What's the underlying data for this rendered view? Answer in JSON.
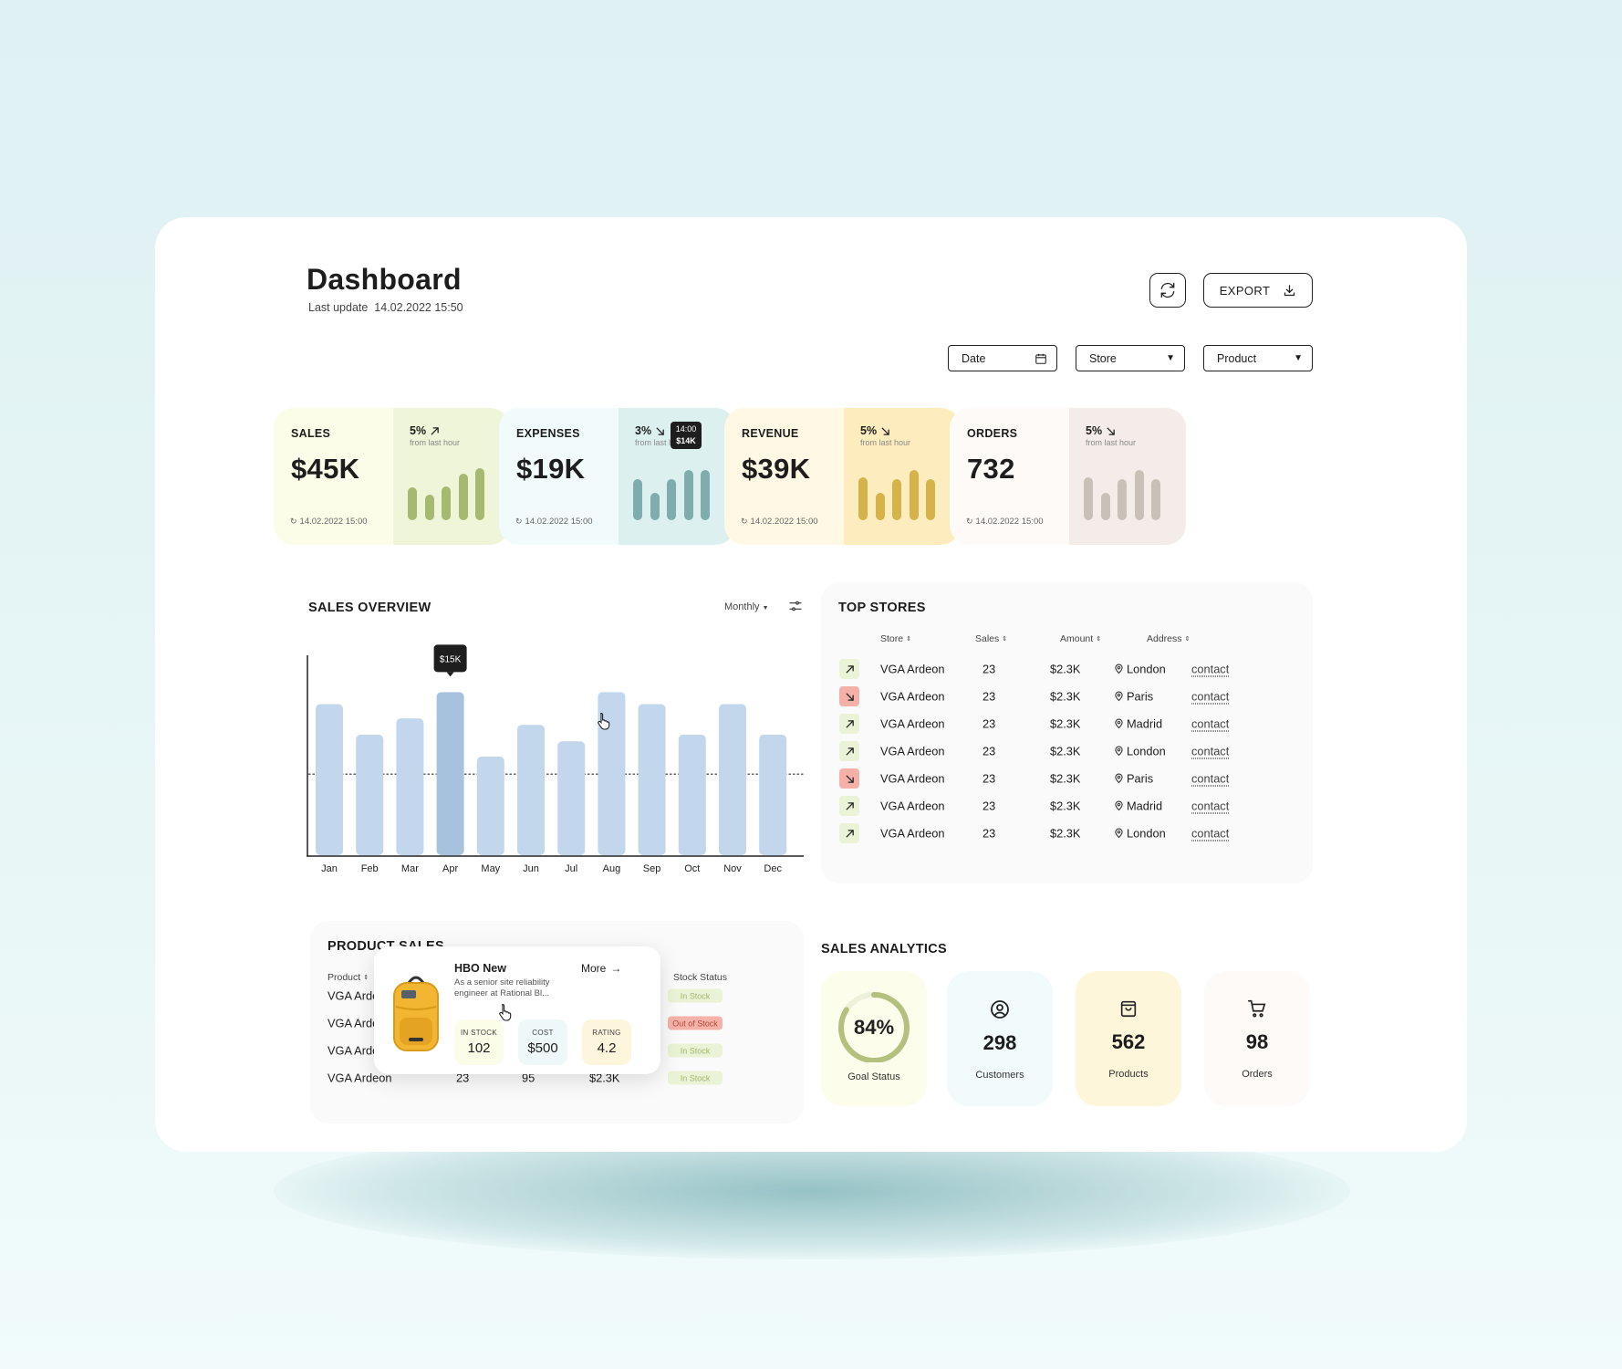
{
  "header": {
    "title": "Dashboard",
    "last_update_label": "Last update",
    "last_update": "14.02.2022 15:50",
    "export_label": "EXPORT"
  },
  "filters": [
    {
      "label": "Date",
      "icon": "calendar-icon"
    },
    {
      "label": "Store",
      "icon": "caret-down-icon"
    },
    {
      "label": "Product",
      "icon": "caret-down-icon"
    }
  ],
  "kpis": [
    {
      "label": "SALES",
      "value": "$45K",
      "change": "5%",
      "direction": "up",
      "from": "from last hour",
      "timestamp": "14.02.2022 15:00",
      "bg_left": "#fbfde8",
      "bg_right": "#eef5d8",
      "bar_color": "#a6b971",
      "bars": [
        0.58,
        0.45,
        0.6,
        0.82,
        0.92
      ]
    },
    {
      "label": "EXPENSES",
      "value": "$19K",
      "change": "3%",
      "direction": "down",
      "from": "from last hour",
      "timestamp": "14.02.2022 15:00",
      "bg_left": "#f2fbfb",
      "bg_right": "#dcf0f0",
      "bar_color": "#7fadad",
      "bars": [
        0.73,
        0.48,
        0.73,
        0.88,
        0.88
      ],
      "tooltip": {
        "time": "14:00",
        "value": "$14K"
      }
    },
    {
      "label": "REVENUE",
      "value": "$39K",
      "change": "5%",
      "direction": "down",
      "from": "from last hour",
      "timestamp": "14.02.2022 15:00",
      "bg_left": "#fff8e4",
      "bg_right": "#fdedbe",
      "bar_color": "#d5b34a",
      "bars": [
        0.75,
        0.48,
        0.73,
        0.88,
        0.73
      ]
    },
    {
      "label": "ORDERS",
      "value": "732",
      "change": "5%",
      "direction": "down",
      "from": "from last hour",
      "timestamp": "14.02.2022 15:00",
      "bg_left": "#fdfaf8",
      "bg_right": "#f4ece8",
      "bar_color": "#c9c0b8",
      "bars": [
        0.75,
        0.48,
        0.73,
        0.88,
        0.73
      ]
    }
  ],
  "sales_overview": {
    "title": "SALES OVERVIEW",
    "period": "Monthly",
    "tooltip": "$15K"
  },
  "chart_data": {
    "type": "bar",
    "title": "SALES OVERVIEW",
    "categories": [
      "Jan",
      "Feb",
      "Mar",
      "Apr",
      "May",
      "Jun",
      "Jul",
      "Aug",
      "Sep",
      "Oct",
      "Nov",
      "Dec"
    ],
    "values": [
      13.9,
      11.1,
      12.6,
      15,
      9.1,
      12,
      10.5,
      15,
      13.9,
      11.1,
      13.9,
      11.1
    ],
    "highlight_index": 3,
    "average_line": 7.5,
    "ylim": [
      0,
      18.2
    ],
    "bar_color": "#c2d7ec",
    "highlight_color": "#a7c2dc"
  },
  "top_stores": {
    "title": "TOP STORES",
    "columns": [
      "Store",
      "Sales",
      "Amount",
      "Address"
    ],
    "contact_label": "contact",
    "rows": [
      {
        "trend": "up",
        "store": "VGA Ardeon",
        "sales": "23",
        "amount": "$2.3K",
        "city": "London"
      },
      {
        "trend": "down",
        "store": "VGA Ardeon",
        "sales": "23",
        "amount": "$2.3K",
        "city": "Paris"
      },
      {
        "trend": "up",
        "store": "VGA Ardeon",
        "sales": "23",
        "amount": "$2.3K",
        "city": "Madrid"
      },
      {
        "trend": "up",
        "store": "VGA Ardeon",
        "sales": "23",
        "amount": "$2.3K",
        "city": "London"
      },
      {
        "trend": "down",
        "store": "VGA Ardeon",
        "sales": "23",
        "amount": "$2.3K",
        "city": "Paris"
      },
      {
        "trend": "up",
        "store": "VGA Ardeon",
        "sales": "23",
        "amount": "$2.3K",
        "city": "Madrid"
      },
      {
        "trend": "up",
        "store": "VGA Ardeon",
        "sales": "23",
        "amount": "$2.3K",
        "city": "London"
      }
    ]
  },
  "product_sales": {
    "title": "PRODUCT SALES",
    "col_product": "Product",
    "col_status": "Stock Status",
    "rows": [
      {
        "product": "VGA Ardeon",
        "status": "In Stock"
      },
      {
        "product": "VGA Ardeon",
        "status": "Out of Stock"
      },
      {
        "product": "VGA Ardeon",
        "status": "In Stock"
      },
      {
        "product": "VGA Ardeon",
        "c1": "23",
        "c2": "95",
        "c3": "$2.3K",
        "status": "In Stock"
      }
    ],
    "popup": {
      "name": "HBO New",
      "more": "More",
      "desc1": "As a senior site reliability",
      "desc2": "engineer at Rational Bl...",
      "stats": [
        {
          "k": "IN STOCK",
          "v": "102"
        },
        {
          "k": "COST",
          "v": "$500"
        },
        {
          "k": "RATING",
          "v": "4.2"
        }
      ]
    }
  },
  "sales_analytics": {
    "title": "SALES ANALYTICS",
    "goal_value": "84%",
    "goal_fraction": 0.84,
    "goal_label": "Goal Status",
    "items": [
      {
        "value": "298",
        "label": "Customers",
        "icon": "user-circle-icon"
      },
      {
        "value": "562",
        "label": "Products",
        "icon": "shopping-bag-icon"
      },
      {
        "value": "98",
        "label": "Orders",
        "icon": "shopping-cart-icon"
      }
    ]
  }
}
